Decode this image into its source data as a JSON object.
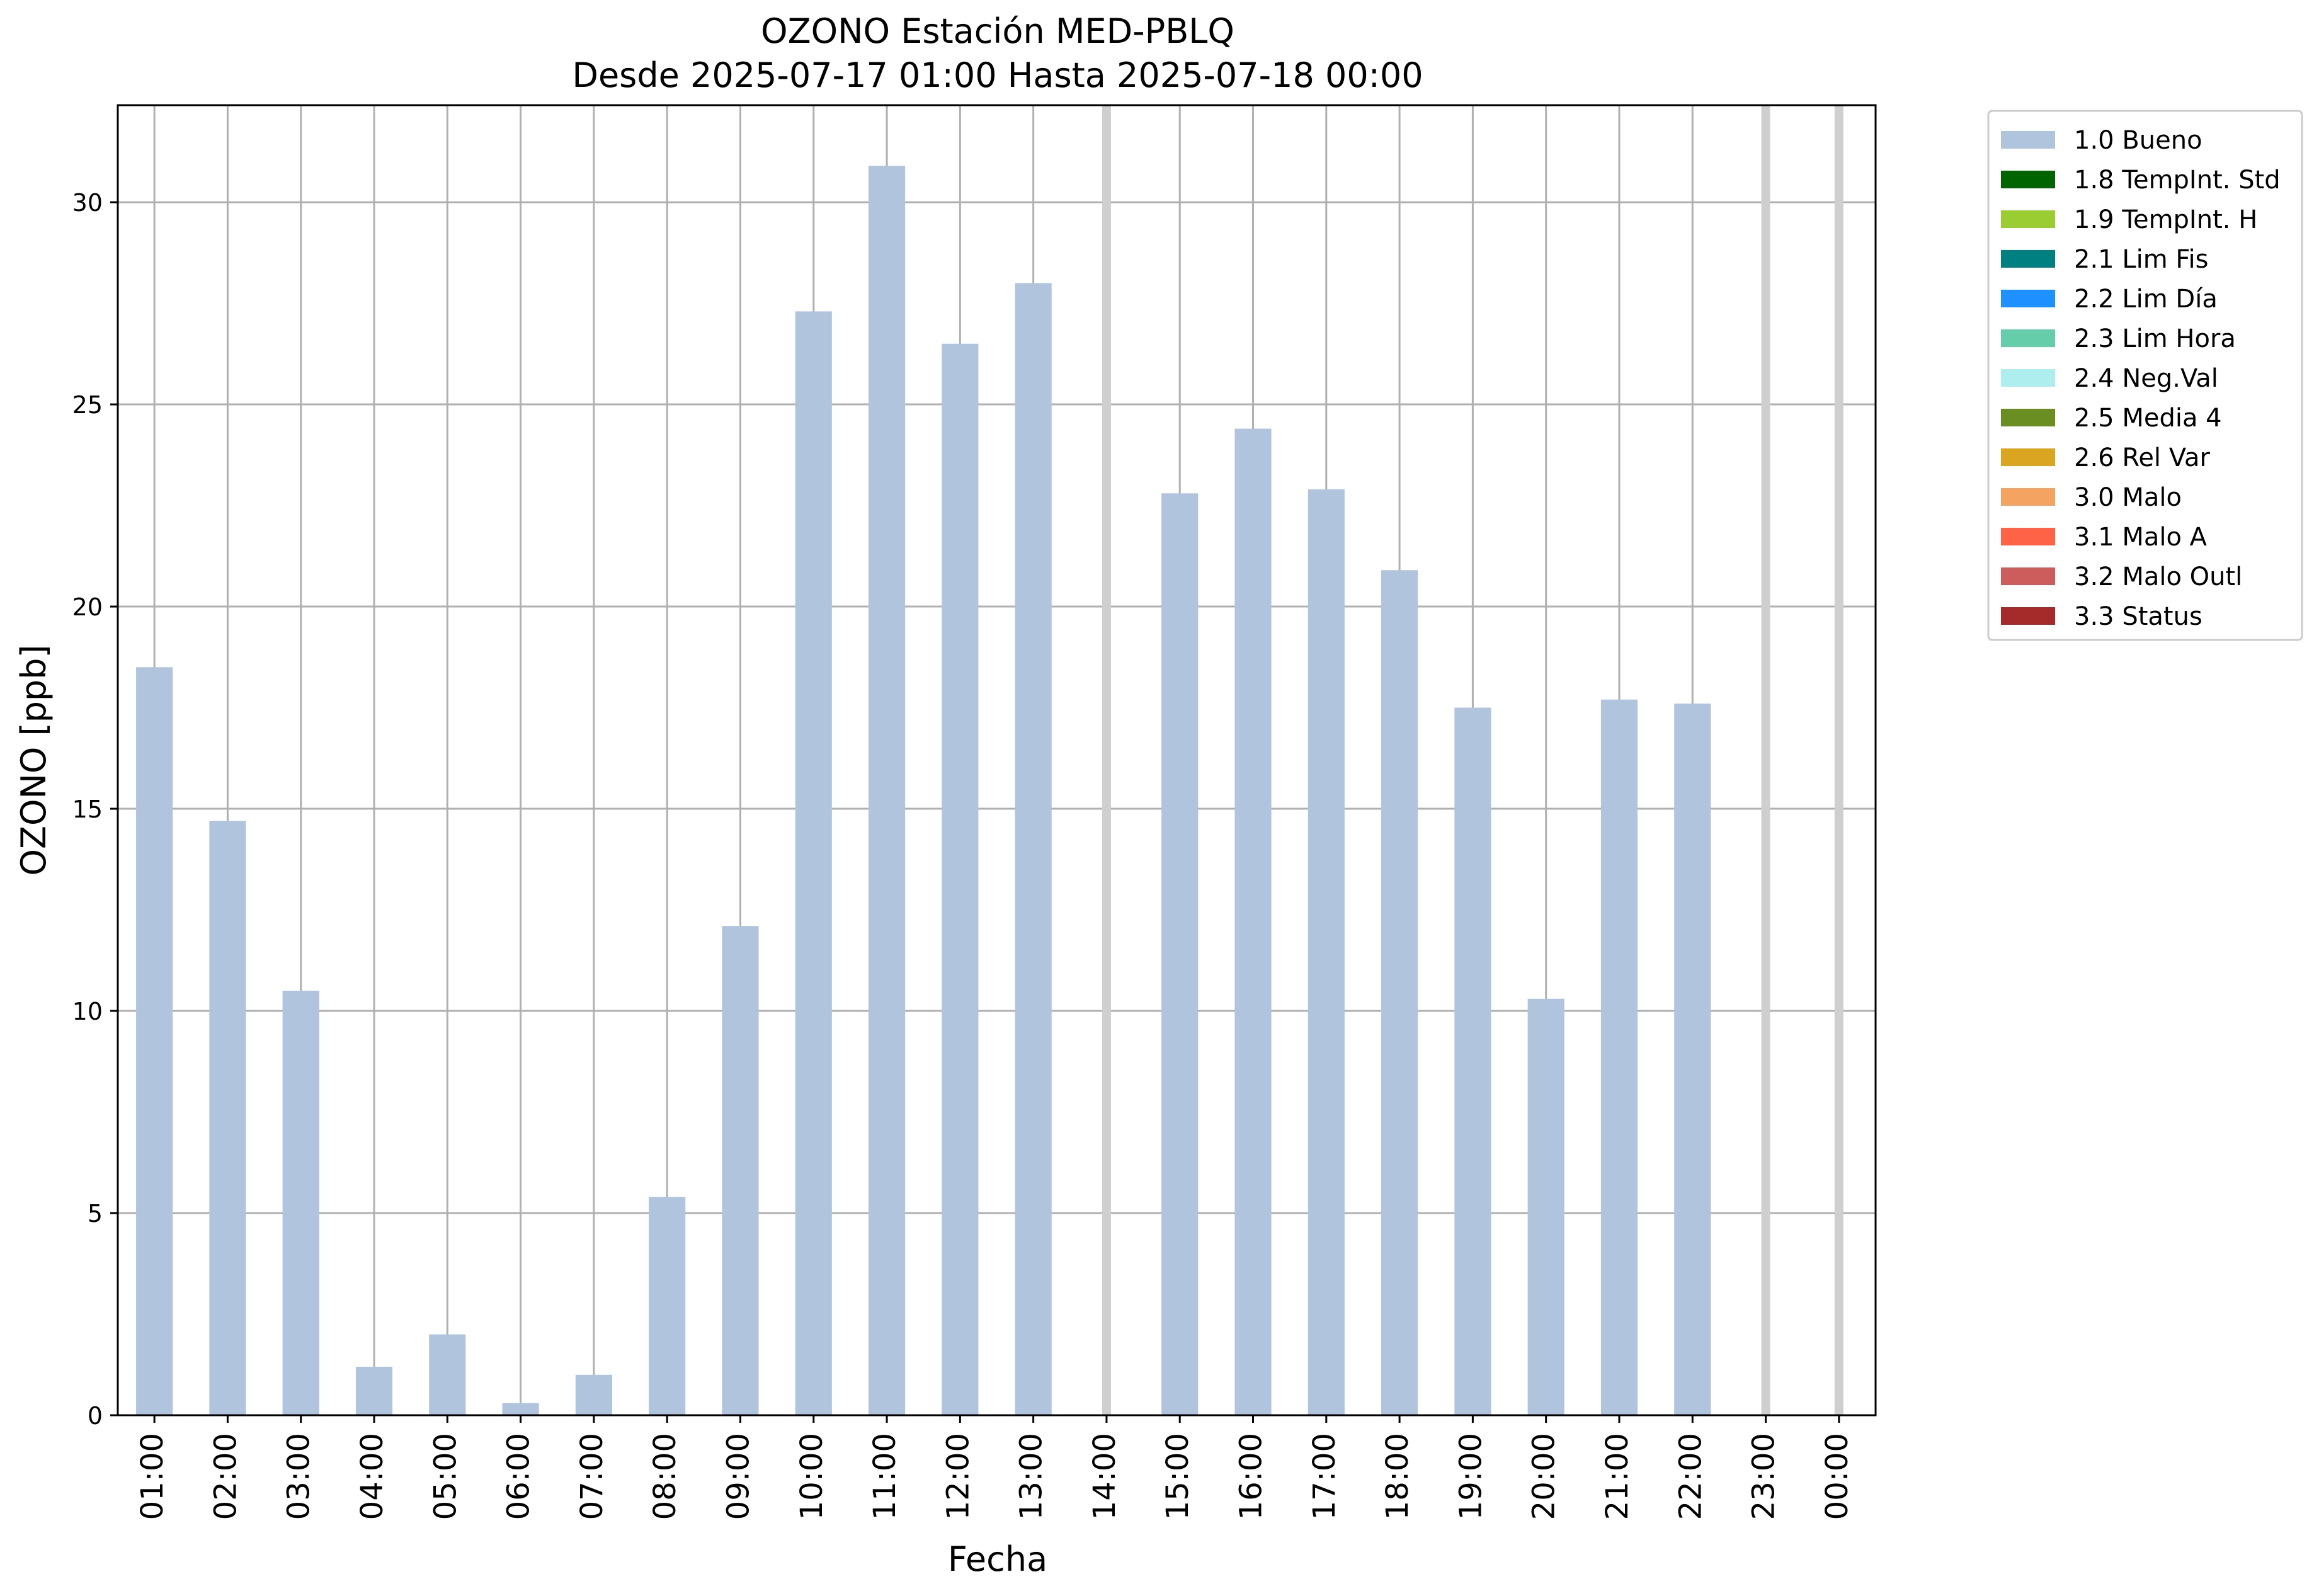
{
  "chart_data": {
    "type": "bar",
    "title": "OZONO Estación MED-PBLQ",
    "subtitle": "Desde 2025-07-17 01:00 Hasta 2025-07-18 00:00",
    "xlabel": "Fecha",
    "ylabel": "OZONO [ppb]",
    "ylim": [
      0,
      32.4
    ],
    "yticks": [
      0,
      5,
      10,
      15,
      20,
      25,
      30
    ],
    "grid": true,
    "legend_position": "outside-top-right",
    "categories": [
      "01:00",
      "02:00",
      "03:00",
      "04:00",
      "05:00",
      "06:00",
      "07:00",
      "08:00",
      "09:00",
      "10:00",
      "11:00",
      "12:00",
      "13:00",
      "14:00",
      "15:00",
      "16:00",
      "17:00",
      "18:00",
      "19:00",
      "20:00",
      "21:00",
      "22:00",
      "23:00",
      "00:00"
    ],
    "series": [
      {
        "name": "1.0 Bueno",
        "color": "#b0c4de",
        "values": [
          18.5,
          14.7,
          10.5,
          1.2,
          2.0,
          0.3,
          1.0,
          5.4,
          12.1,
          27.3,
          30.9,
          26.5,
          28.0,
          null,
          22.8,
          24.4,
          22.9,
          20.9,
          17.5,
          10.3,
          17.7,
          17.6,
          null,
          null
        ]
      }
    ],
    "missing_markers": [
      "14:00",
      "23:00",
      "00:00"
    ],
    "legend": [
      {
        "label": "1.0 Bueno",
        "color": "#b0c4de"
      },
      {
        "label": "1.8 TempInt. Std",
        "color": "#006400"
      },
      {
        "label": "1.9 TempInt. H",
        "color": "#9acd32"
      },
      {
        "label": "2.1 Lim Fis",
        "color": "#008080"
      },
      {
        "label": "2.2 Lim Día",
        "color": "#1e90ff"
      },
      {
        "label": "2.3 Lim Hora",
        "color": "#66cdaa"
      },
      {
        "label": "2.4 Neg.Val",
        "color": "#afeeee"
      },
      {
        "label": "2.5 Media 4",
        "color": "#6b8e23"
      },
      {
        "label": "2.6 Rel Var",
        "color": "#daa520"
      },
      {
        "label": "3.0 Malo",
        "color": "#f4a460"
      },
      {
        "label": "3.1 Malo A",
        "color": "#ff6347"
      },
      {
        "label": "3.2 Malo Outl",
        "color": "#cd5c5c"
      },
      {
        "label": "3.3 Status",
        "color": "#a52a2a"
      }
    ]
  }
}
